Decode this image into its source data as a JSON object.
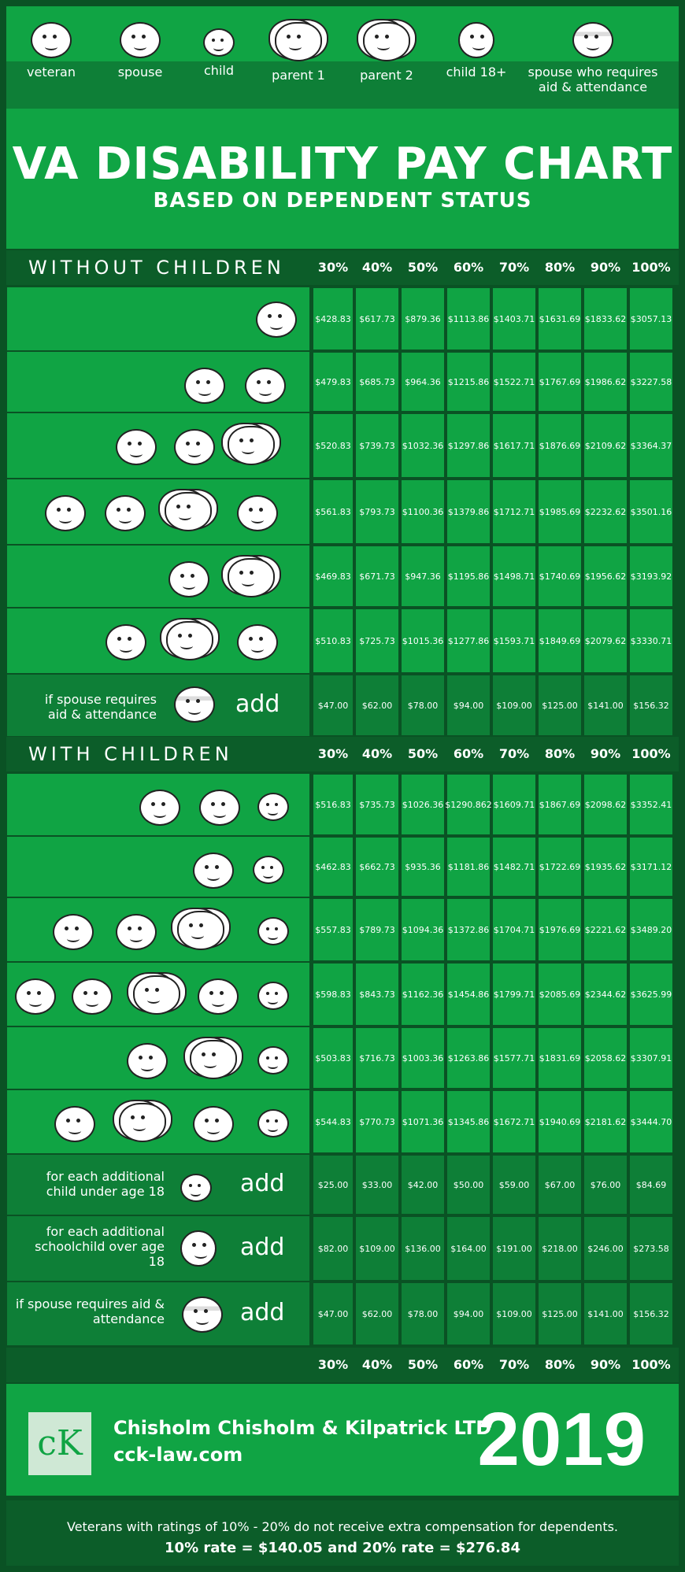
{
  "legend": [
    {
      "label": "veteran"
    },
    {
      "label": "spouse"
    },
    {
      "label": "child"
    },
    {
      "label": "parent 1"
    },
    {
      "label": "parent 2"
    },
    {
      "label": "child 18+"
    },
    {
      "label": "spouse who requires aid & attendance"
    }
  ],
  "title": {
    "main": "VA DISABILITY PAY CHART",
    "sub": "BASED ON DEPENDENT STATUS"
  },
  "percent_headers": [
    "30%",
    "40%",
    "50%",
    "60%",
    "70%",
    "80%",
    "90%",
    "100%"
  ],
  "without_children": {
    "heading": "WITHOUT CHILDREN",
    "rows": [
      [
        "$428.83",
        "$617.73",
        "$879.36",
        "$1113.86",
        "$1403.71",
        "$1631.69",
        "$1833.62",
        "$3057.13"
      ],
      [
        "$479.83",
        "$685.73",
        "$964.36",
        "$1215.86",
        "$1522.71",
        "$1767.69",
        "$1986.62",
        "$3227.58"
      ],
      [
        "$520.83",
        "$739.73",
        "$1032.36",
        "$1297.86",
        "$1617.71",
        "$1876.69",
        "$2109.62",
        "$3364.37"
      ],
      [
        "$561.83",
        "$793.73",
        "$1100.36",
        "$1379.86",
        "$1712.71",
        "$1985.69",
        "$2232.62",
        "$3501.16"
      ],
      [
        "$469.83",
        "$671.73",
        "$947.36",
        "$1195.86",
        "$1498.71",
        "$1740.69",
        "$1956.62",
        "$3193.92"
      ],
      [
        "$510.83",
        "$725.73",
        "$1015.36",
        "$1277.86",
        "$1593.71",
        "$1849.69",
        "$2079.62",
        "$3330.71"
      ]
    ],
    "aa_row": {
      "label": "if spouse requires aid & attendance",
      "add": "add",
      "values": [
        "$47.00",
        "$62.00",
        "$78.00",
        "$94.00",
        "$109.00",
        "$125.00",
        "$141.00",
        "$156.32"
      ]
    }
  },
  "with_children": {
    "heading": "WITH CHILDREN",
    "rows": [
      [
        "$516.83",
        "$735.73",
        "$1026.36",
        "$1290.862",
        "$1609.71",
        "$1867.69",
        "$2098.62",
        "$3352.41"
      ],
      [
        "$462.83",
        "$662.73",
        "$935.36",
        "$1181.86",
        "$1482.71",
        "$1722.69",
        "$1935.62",
        "$3171.12"
      ],
      [
        "$557.83",
        "$789.73",
        "$1094.36",
        "$1372.86",
        "$1704.71",
        "$1976.69",
        "$2221.62",
        "$3489.20"
      ],
      [
        "$598.83",
        "$843.73",
        "$1162.36",
        "$1454.86",
        "$1799.71",
        "$2085.69",
        "$2344.62",
        "$3625.99"
      ],
      [
        "$503.83",
        "$716.73",
        "$1003.36",
        "$1263.86",
        "$1577.71",
        "$1831.69",
        "$2058.62",
        "$3307.91"
      ],
      [
        "$544.83",
        "$770.73",
        "$1071.36",
        "$1345.86",
        "$1672.71",
        "$1940.69",
        "$2181.62",
        "$3444.70"
      ]
    ],
    "extra_rows": [
      {
        "label": "for each additional child under age 18",
        "add": "add",
        "values": [
          "$25.00",
          "$33.00",
          "$42.00",
          "$50.00",
          "$59.00",
          "$67.00",
          "$76.00",
          "$84.69"
        ]
      },
      {
        "label": "for each additional schoolchild over age 18",
        "add": "add",
        "values": [
          "$82.00",
          "$109.00",
          "$136.00",
          "$164.00",
          "$191.00",
          "$218.00",
          "$246.00",
          "$273.58"
        ]
      },
      {
        "label": "if spouse requires aid & attendance",
        "add": "add",
        "values": [
          "$47.00",
          "$62.00",
          "$78.00",
          "$94.00",
          "$109.00",
          "$125.00",
          "$141.00",
          "$156.32"
        ]
      }
    ]
  },
  "footer": {
    "logo": "cK",
    "firm": "Chisholm Chisholm & Kilpatrick LTD",
    "site": "cck-law.com",
    "year": "2019",
    "note_line1": "Veterans with ratings of 10% - 20% do not receive extra compensation for dependents.",
    "note_line2": "10% rate = $140.05  and  20% rate = $276.84"
  },
  "colors": {
    "bright_green": "#10a444",
    "mid_green": "#0e7f37",
    "dark_green": "#0a5224"
  }
}
